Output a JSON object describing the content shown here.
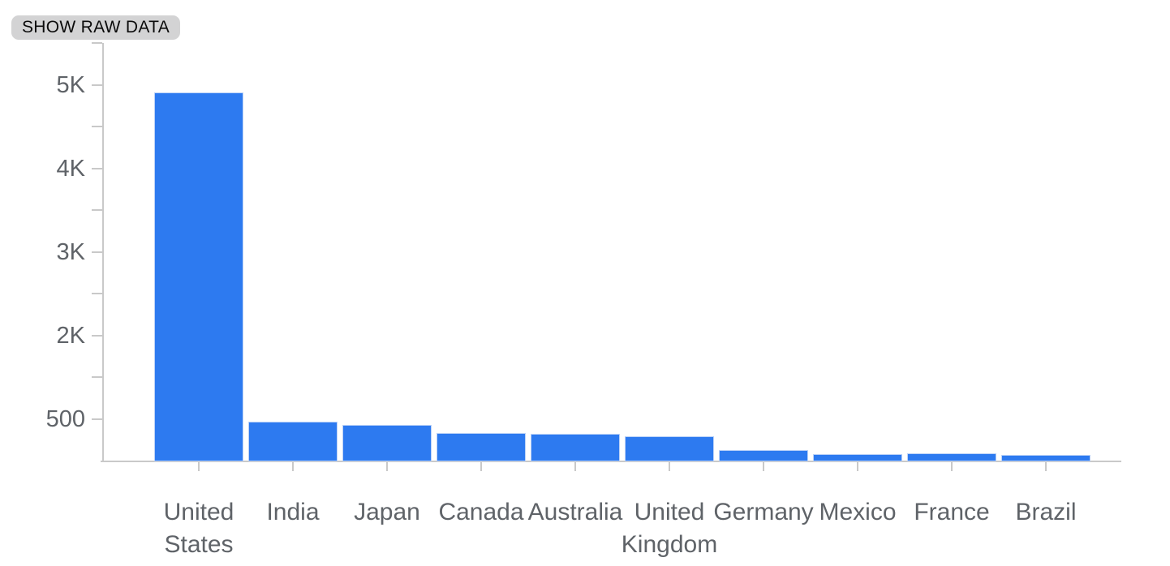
{
  "toolbar": {
    "show_raw_data_label": "SHOW RAW DATA"
  },
  "chart_data": {
    "type": "bar",
    "title": "",
    "xlabel": "",
    "ylabel": "",
    "categories": [
      "United States",
      "India",
      "Japan",
      "Canada",
      "Australia",
      "United Kingdom",
      "Germany",
      "Mexico",
      "France",
      "Brazil"
    ],
    "values": [
      4900,
      530,
      485,
      375,
      365,
      335,
      150,
      97,
      108,
      86
    ],
    "ytick_labels": [
      "5K",
      "4K",
      "3K",
      "2K",
      "500"
    ],
    "ylim": [
      0,
      5000
    ],
    "grid": false,
    "legend": "none",
    "bar_color": "#2d7af0",
    "axis_color": "#c9c9c9",
    "label_color": "#5f6368"
  }
}
